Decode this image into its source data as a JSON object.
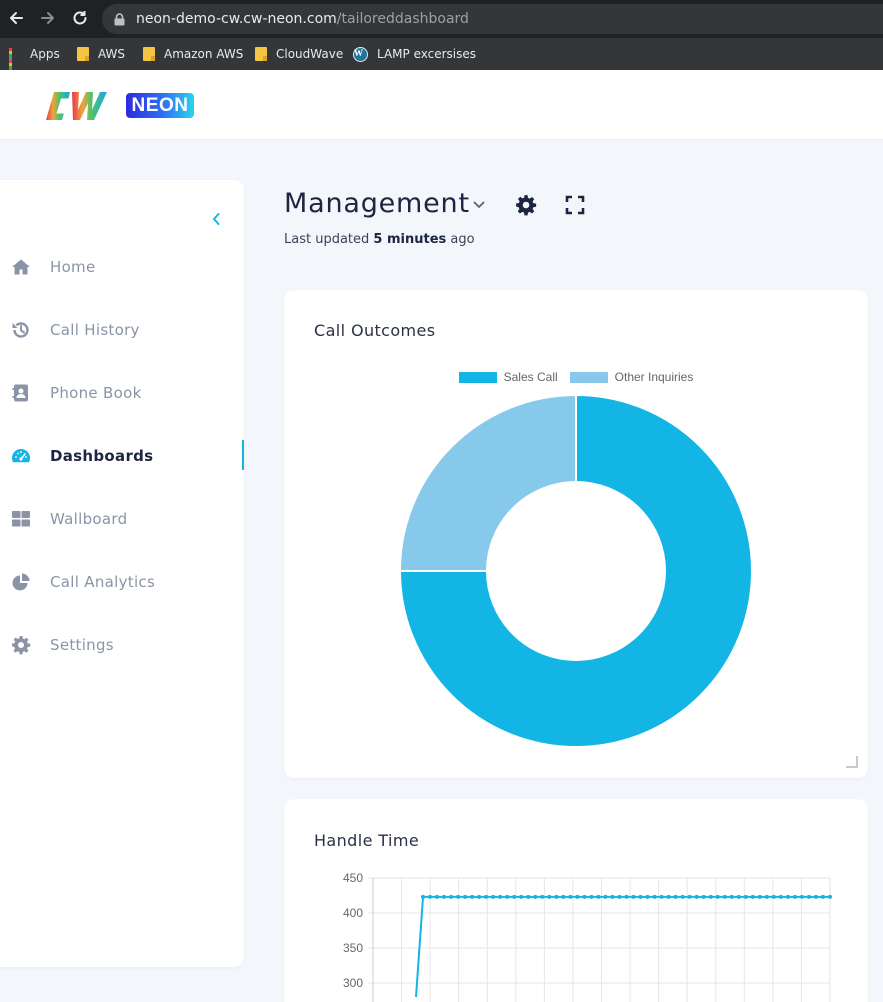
{
  "browser": {
    "url_domain": "neon-demo-cw.cw-neon.com",
    "url_path": "/tailoreddashboard",
    "bookmarks": [
      {
        "label": "Apps",
        "icon": "apps-grid-icon"
      },
      {
        "label": "AWS",
        "icon": "folder-icon"
      },
      {
        "label": "Amazon AWS",
        "icon": "folder-icon"
      },
      {
        "label": "CloudWave",
        "icon": "folder-icon"
      },
      {
        "label": "LAMP excersises",
        "icon": "wordpress-icon"
      }
    ]
  },
  "brand": {
    "logo_text": "CW",
    "badge_text": "NEON",
    "accent": "#13b5e5"
  },
  "sidebar": {
    "items": [
      {
        "label": "Home",
        "icon": "home-icon",
        "active": false
      },
      {
        "label": "Call History",
        "icon": "history-icon",
        "active": false
      },
      {
        "label": "Phone Book",
        "icon": "contact-book-icon",
        "active": false
      },
      {
        "label": "Dashboards",
        "icon": "gauge-icon",
        "active": true
      },
      {
        "label": "Wallboard",
        "icon": "grid-icon",
        "active": false
      },
      {
        "label": "Call Analytics",
        "icon": "pie-chart-icon",
        "active": false
      },
      {
        "label": "Settings",
        "icon": "gear-icon",
        "active": false
      }
    ]
  },
  "dashboard": {
    "title": "Management",
    "last_updated_prefix": "Last updated",
    "last_updated_value": "5 minutes",
    "last_updated_suffix": "ago"
  },
  "chart_data": [
    {
      "type": "pie",
      "title": "Call Outcomes",
      "labels": [
        "Sales Call",
        "Other Inquiries"
      ],
      "values": [
        75,
        25
      ],
      "colors": [
        "#13b5e5",
        "#86c9ea"
      ],
      "legend_position": "top",
      "donut": true
    },
    {
      "type": "line",
      "title": "Handle Time",
      "ylim": [
        300,
        450
      ],
      "yticks": [
        450,
        400,
        350,
        300
      ],
      "color": "#13b5e5",
      "grid": true,
      "series": [
        {
          "values": [
            280,
            423,
            423,
            423,
            423,
            423,
            423,
            423,
            423,
            423,
            423,
            423,
            423,
            423,
            423,
            423,
            423,
            423,
            423,
            423,
            423,
            423,
            423,
            423,
            423,
            423,
            423,
            423,
            423,
            423,
            423,
            423,
            423,
            423,
            423,
            423,
            423,
            423,
            423,
            423,
            423,
            423,
            423,
            423,
            423,
            423,
            423,
            423,
            423,
            423,
            423,
            423,
            423,
            423,
            423,
            423,
            423,
            423,
            423,
            423
          ]
        }
      ]
    }
  ]
}
